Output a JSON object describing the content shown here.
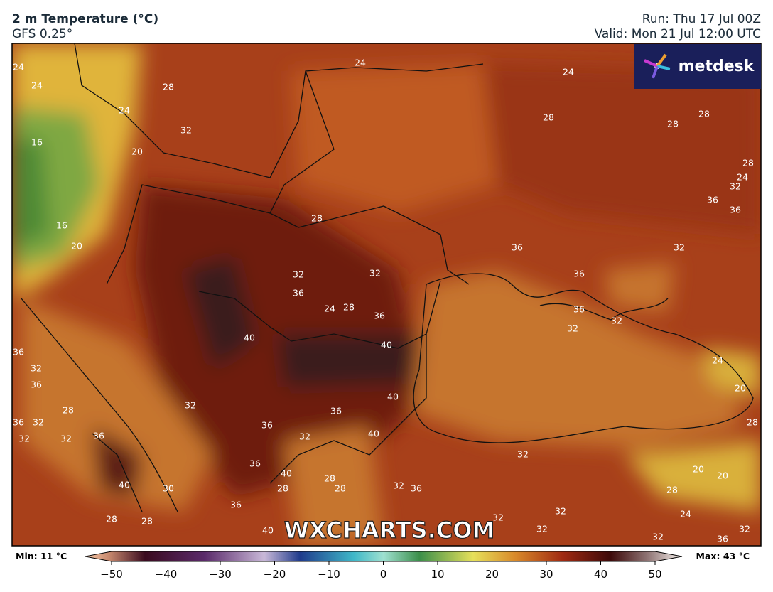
{
  "header": {
    "title": "2 m Temperature (°C)",
    "model": "GFS 0.25°",
    "run": "Run: Thu 17 Jul 00Z",
    "valid": "Valid: Mon 21 Jul 12:00 UTC"
  },
  "logo": "metdesk",
  "watermark": "WXCHARTS.COM",
  "colorbar": {
    "min": "Min: 11 °C",
    "max": "Max: 43 °C",
    "ticks": [
      {
        "value": -50,
        "label": "−50"
      },
      {
        "value": -40,
        "label": "−40"
      },
      {
        "value": -30,
        "label": "−30"
      },
      {
        "value": -20,
        "label": "−20"
      },
      {
        "value": -10,
        "label": "−10"
      },
      0,
      10,
      20,
      30,
      40,
      50
    ]
  },
  "contour_labels": [
    "24",
    "24",
    "28",
    "24",
    "32",
    "16",
    "20",
    "16",
    "20",
    "24",
    "24",
    "28",
    "28",
    "28",
    "28",
    "24",
    "32",
    "36",
    "36",
    "28",
    "36",
    "32",
    "32",
    "32",
    "36",
    "36",
    "24",
    "28",
    "36",
    "36",
    "32",
    "32",
    "40",
    "40",
    "36",
    "32",
    "36",
    "24",
    "20",
    "40",
    "32",
    "28",
    "36",
    "36",
    "32",
    "36",
    "28",
    "32",
    "32",
    "36",
    "32",
    "40",
    "32",
    "36",
    "40",
    "28",
    "20",
    "20",
    "40",
    "30",
    "28",
    "28",
    "32",
    "36",
    "28",
    "36",
    "32",
    "24",
    "32",
    "28",
    "28",
    "40",
    "32",
    "32",
    "32",
    "36"
  ]
}
